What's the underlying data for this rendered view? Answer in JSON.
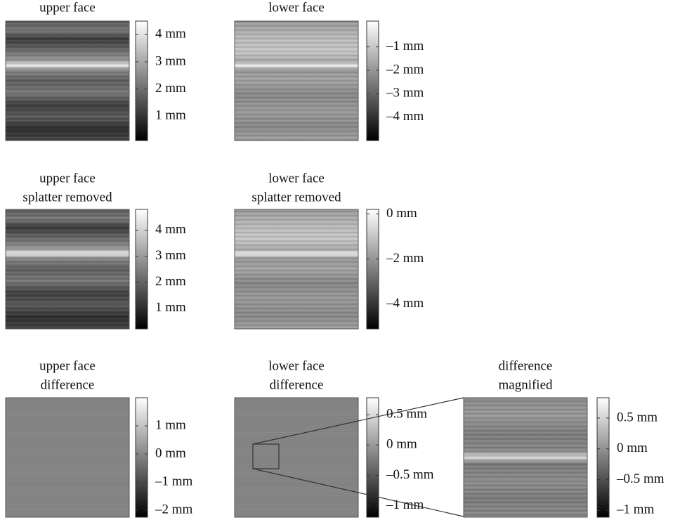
{
  "chart_data": [
    {
      "type": "heatmap",
      "title": [
        "upper face"
      ],
      "colorbar": {
        "lim": [
          0.1,
          4.5
        ],
        "ticks": [
          {
            "value": 4,
            "label": "4 mm"
          },
          {
            "value": 3,
            "label": "3 mm"
          },
          {
            "value": 2,
            "label": "2 mm"
          },
          {
            "value": 1,
            "label": "1 mm"
          }
        ]
      }
    },
    {
      "type": "heatmap",
      "title": [
        "lower face"
      ],
      "colorbar": {
        "lim": [
          -5,
          0.1
        ],
        "ticks": [
          {
            "value": -1,
            "label": "–1 mm"
          },
          {
            "value": -2,
            "label": "–2 mm"
          },
          {
            "value": -3,
            "label": "–3 mm"
          },
          {
            "value": -4,
            "label": "–4 mm"
          }
        ]
      }
    },
    {
      "type": "heatmap",
      "title": [
        "upper face",
        "splatter removed"
      ],
      "colorbar": {
        "lim": [
          0.2,
          4.8
        ],
        "ticks": [
          {
            "value": 4,
            "label": "4 mm"
          },
          {
            "value": 3,
            "label": "3 mm"
          },
          {
            "value": 2,
            "label": "2 mm"
          },
          {
            "value": 1,
            "label": "1 mm"
          }
        ]
      }
    },
    {
      "type": "heatmap",
      "title": [
        "lower face",
        "splatter removed"
      ],
      "colorbar": {
        "lim": [
          -5.1,
          0.2
        ],
        "ticks": [
          {
            "value": 0,
            "label": "0 mm"
          },
          {
            "value": -2,
            "label": "–2 mm"
          },
          {
            "value": -4,
            "label": "–4 mm"
          }
        ]
      }
    },
    {
      "type": "heatmap",
      "title": [
        "upper face",
        "difference"
      ],
      "colorbar": {
        "lim": [
          -2.25,
          2.0
        ],
        "ticks": [
          {
            "value": 1,
            "label": "1 mm"
          },
          {
            "value": 0,
            "label": "0 mm"
          },
          {
            "value": -1,
            "label": "–1 mm"
          },
          {
            "value": -2,
            "label": "–2 mm"
          }
        ]
      }
    },
    {
      "type": "heatmap",
      "title": [
        "lower face",
        "difference"
      ],
      "colorbar": {
        "lim": [
          -1.19,
          0.78
        ],
        "ticks": [
          {
            "value": 0.5,
            "label": "0.5 mm"
          },
          {
            "value": 0,
            "label": "0 mm"
          },
          {
            "value": -0.5,
            "label": "–0.5 mm"
          },
          {
            "value": -1,
            "label": "–1 mm"
          }
        ]
      }
    },
    {
      "type": "heatmap",
      "title": [
        "difference",
        "magnified"
      ],
      "colorbar": {
        "lim": [
          -1.11,
          0.83
        ],
        "ticks": [
          {
            "value": 0.5,
            "label": "0.5 mm"
          },
          {
            "value": 0,
            "label": "0 mm"
          },
          {
            "value": -0.5,
            "label": "–0.5 mm"
          },
          {
            "value": -1,
            "label": "–1 mm"
          }
        ]
      }
    }
  ]
}
